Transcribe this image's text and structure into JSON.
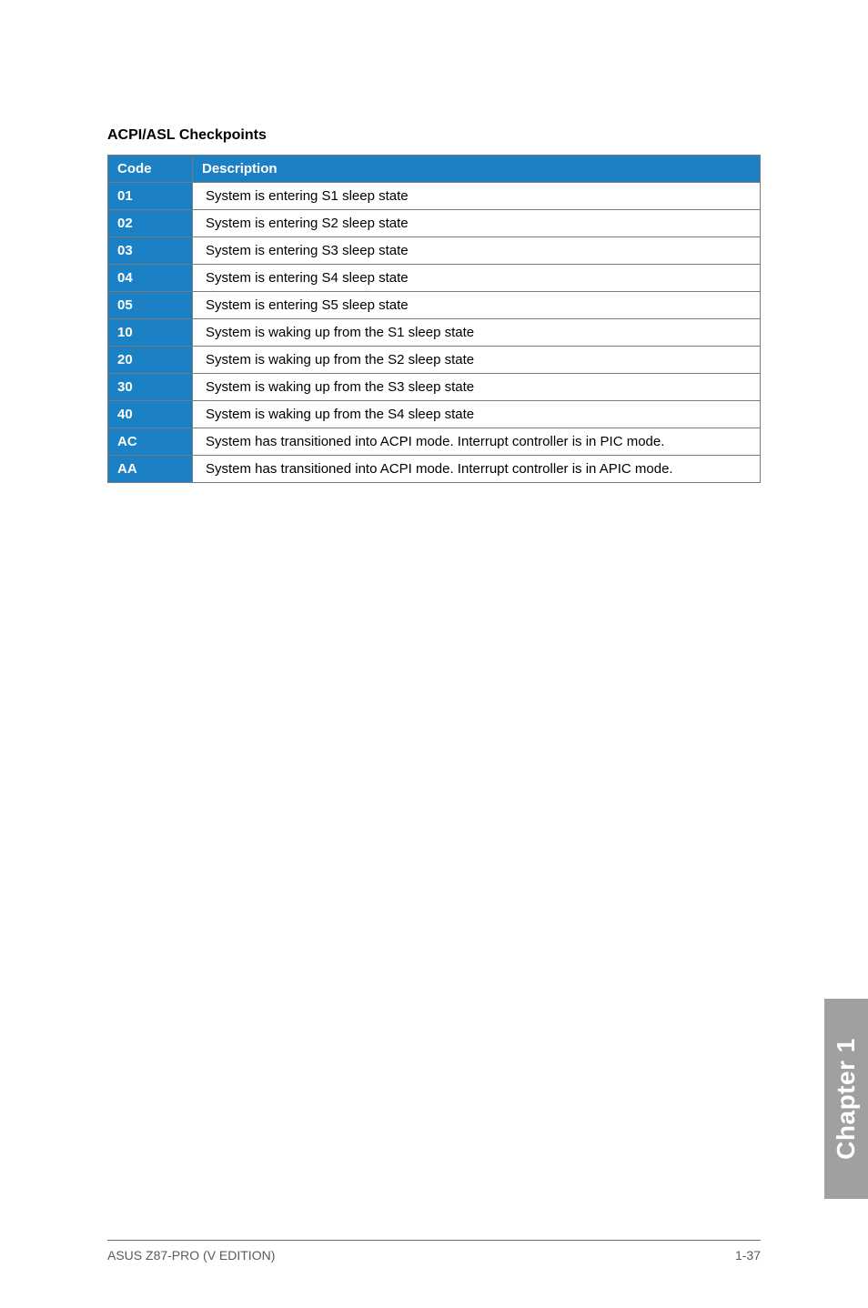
{
  "section_title": "ACPI/ASL Checkpoints",
  "table": {
    "headers": {
      "code": "Code",
      "description": "Description"
    },
    "header_bg": "#1b81c4",
    "header_fg": "#ffffff",
    "code_cell_bg": "#1b81c4",
    "code_cell_fg": "#ffffff",
    "desc_cell_bg": "#ffffff",
    "desc_cell_fg": "#000000",
    "border_color": "#7a7a7a",
    "rows": [
      {
        "code": "01",
        "desc": "System is entering S1 sleep state"
      },
      {
        "code": "02",
        "desc": "System is entering S2 sleep state"
      },
      {
        "code": "03",
        "desc": "System is entering S3 sleep state"
      },
      {
        "code": "04",
        "desc": "System is entering S4 sleep state"
      },
      {
        "code": "05",
        "desc": "System is entering S5 sleep state"
      },
      {
        "code": "10",
        "desc": "System is waking up from the S1 sleep state"
      },
      {
        "code": "20",
        "desc": "System is waking up from the S2 sleep state"
      },
      {
        "code": "30",
        "desc": "System is waking up from the S3 sleep state"
      },
      {
        "code": "40",
        "desc": "System is waking up from the S4 sleep state"
      },
      {
        "code": "AC",
        "desc": "System has transitioned into ACPI mode. Interrupt controller is in PIC mode."
      },
      {
        "code": "AA",
        "desc": "System has transitioned into ACPI mode. Interrupt controller is in APIC mode."
      }
    ]
  },
  "side_tab": {
    "label": "Chapter 1",
    "bg": "#a0a0a0",
    "fg": "#ffffff"
  },
  "footer": {
    "left": "ASUS Z87-PRO (V EDITION)",
    "right": "1-37",
    "color": "#5a5a5a",
    "rule_color": "#6e6e6e"
  }
}
